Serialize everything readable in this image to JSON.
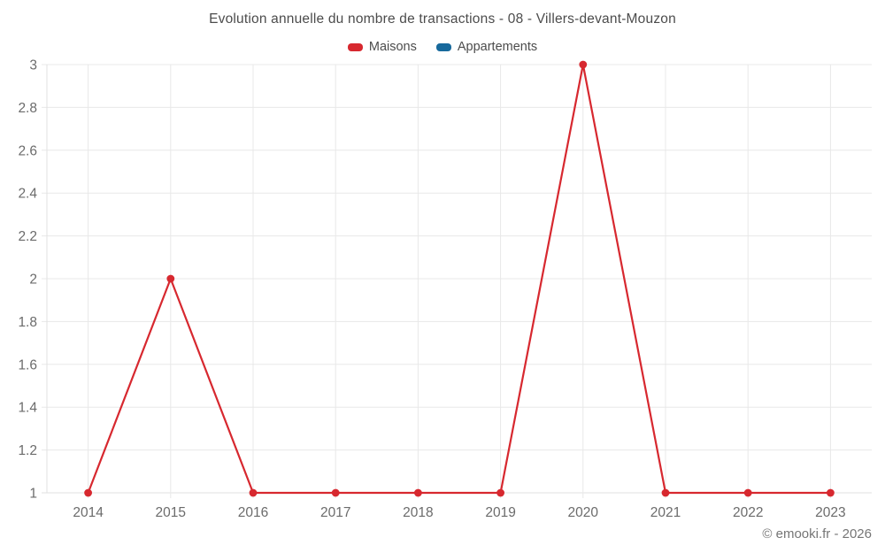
{
  "title": "Evolution annuelle du nombre de transactions - 08 - Villers-devant-Mouzon",
  "legend": [
    {
      "label": "Maisons",
      "color": "#d7282f"
    },
    {
      "label": "Appartements",
      "color": "#17699c"
    }
  ],
  "footer": {
    "credit": "© emooki.fr - 2026"
  },
  "chart_data": {
    "type": "line",
    "title": "Evolution annuelle du nombre de transactions - 08 - Villers-devant-Mouzon",
    "categories": [
      "2014",
      "2015",
      "2016",
      "2017",
      "2018",
      "2019",
      "2020",
      "2021",
      "2022",
      "2023"
    ],
    "series": [
      {
        "name": "Maisons",
        "color": "#d7282f",
        "values": [
          1,
          2,
          1,
          1,
          1,
          1,
          3,
          1,
          1,
          1
        ]
      },
      {
        "name": "Appartements",
        "color": "#17699c",
        "values": []
      }
    ],
    "xlabel": "",
    "ylabel": "",
    "ylim": [
      1,
      3
    ],
    "ytick_step": 0.2,
    "grid": true,
    "legend_position": "top"
  }
}
